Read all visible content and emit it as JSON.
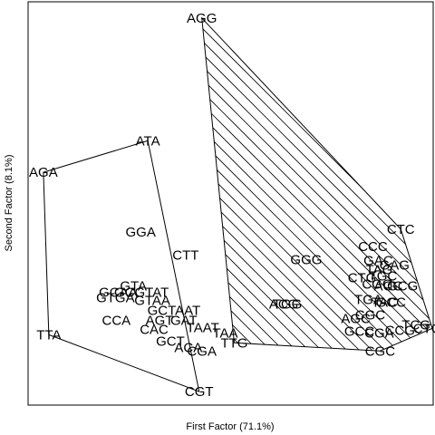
{
  "chart_data": {
    "type": "scatter",
    "xlabel": "First Factor (71.1%)",
    "ylabel": "Second Factor (8.1%)",
    "xlim": [
      0,
      450
    ],
    "ylim": [
      -447,
      0
    ],
    "points": [
      {
        "label": "AGG",
        "x": 193,
        "y": -18
      },
      {
        "label": "ATA",
        "x": 133,
        "y": -154
      },
      {
        "label": "AGA",
        "x": 17,
        "y": -189
      },
      {
        "label": "GGA",
        "x": 125,
        "y": -255
      },
      {
        "label": "CTT",
        "x": 175,
        "y": -281
      },
      {
        "label": "GTA",
        "x": 117,
        "y": -315
      },
      {
        "label": "GCAA",
        "x": 100,
        "y": -322
      },
      {
        "label": "GTGA",
        "x": 97,
        "y": -328
      },
      {
        "label": "GCGTAT",
        "x": 126,
        "y": -322
      },
      {
        "label": "GTAA",
        "x": 138,
        "y": -331
      },
      {
        "label": "GCTAAT",
        "x": 162,
        "y": -342
      },
      {
        "label": "CCA",
        "x": 98,
        "y": -353
      },
      {
        "label": "AGT",
        "x": 146,
        "y": -353
      },
      {
        "label": "GAT",
        "x": 173,
        "y": -353
      },
      {
        "label": "CAC",
        "x": 140,
        "y": -363
      },
      {
        "label": "TAAT",
        "x": 194,
        "y": -361
      },
      {
        "label": "TAA",
        "x": 219,
        "y": -367
      },
      {
        "label": "GCT",
        "x": 158,
        "y": -376
      },
      {
        "label": "ACA",
        "x": 178,
        "y": -383
      },
      {
        "label": "CGA",
        "x": 193,
        "y": -387
      },
      {
        "label": "TTG",
        "x": 229,
        "y": -378
      },
      {
        "label": "TTA",
        "x": 23,
        "y": -369
      },
      {
        "label": "CGT",
        "x": 190,
        "y": -432
      },
      {
        "label": "GGG",
        "x": 309,
        "y": -286
      },
      {
        "label": "ACG",
        "x": 284,
        "y": -335
      },
      {
        "label": "TGG",
        "x": 288,
        "y": -335
      },
      {
        "label": "CTC",
        "x": 414,
        "y": -252
      },
      {
        "label": "CCC",
        "x": 383,
        "y": -271
      },
      {
        "label": "GAC",
        "x": 389,
        "y": -287
      },
      {
        "label": "TAG",
        "x": 390,
        "y": -297
      },
      {
        "label": "GAG",
        "x": 407,
        "y": -292
      },
      {
        "label": "CTG",
        "x": 371,
        "y": -306
      },
      {
        "label": "TGC",
        "x": 394,
        "y": -304
      },
      {
        "label": "CGG",
        "x": 388,
        "y": -313
      },
      {
        "label": "ACC",
        "x": 400,
        "y": -315
      },
      {
        "label": "GCG",
        "x": 416,
        "y": -315
      },
      {
        "label": "TGA",
        "x": 378,
        "y": -330
      },
      {
        "label": "TAC",
        "x": 396,
        "y": -333
      },
      {
        "label": "GCC",
        "x": 403,
        "y": -333
      },
      {
        "label": "AGC",
        "x": 364,
        "y": -351
      },
      {
        "label": "CGC2",
        "x": 380,
        "y": -347
      },
      {
        "label": "GCC2",
        "x": 368,
        "y": -365
      },
      {
        "label": "CGA2",
        "x": 390,
        "y": -367
      },
      {
        "label": "CCG",
        "x": 413,
        "y": -364
      },
      {
        "label": "TCG",
        "x": 431,
        "y": -358
      },
      {
        "label": "CTCG",
        "x": 449,
        "y": -362
      },
      {
        "label": "CGC",
        "x": 391,
        "y": -387
      }
    ],
    "display_labels": {
      "CGC2": "CGC",
      "GCC2": "GCC",
      "CGA2": "CGA",
      "GCAA": "GCAA",
      "GTGA": "GTGA",
      "GCGTAT": "GCGTAT",
      "GTAA": "GTAA",
      "GCTAAT": "GCTAAT",
      "TAAT": "TAAT",
      "CTCG": "CTCG"
    },
    "hull_left": [
      "ATA",
      "CGT",
      "TTA",
      "AGA"
    ],
    "hull_right": [
      "AGG",
      "CTC",
      "CTCG",
      "CGC",
      "TTG"
    ],
    "hatched": "right"
  }
}
